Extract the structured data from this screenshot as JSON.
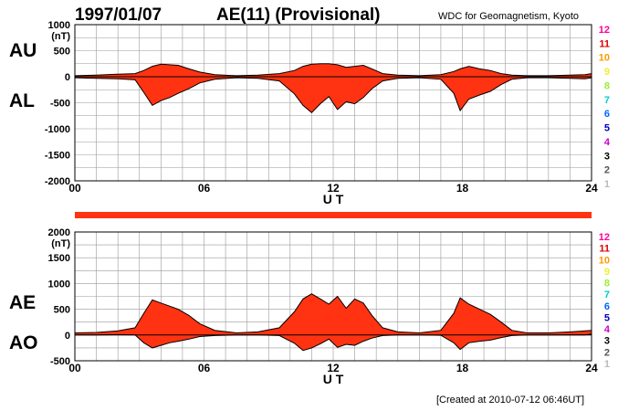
{
  "header": {
    "date": "1997/01/07",
    "title": "AE(11) (Provisional)",
    "source": "WDC for Geomagnetism, Kyoto"
  },
  "footer": {
    "created": "[Created at 2010-07-12 06:46UT]"
  },
  "station_count": {
    "labels": [
      "12",
      "11",
      "10",
      "9",
      "8",
      "7",
      "6",
      "5",
      "4",
      "3",
      "2",
      "1"
    ],
    "colors": [
      "#ff0099",
      "#dd0000",
      "#ff9900",
      "#eeee33",
      "#99ee33",
      "#00cccc",
      "#0066ff",
      "#0000bb",
      "#cc00cc",
      "#000000",
      "#555555",
      "#bbbbbb"
    ]
  },
  "colors": {
    "fill": "#ff3311",
    "bar": "#ff3311",
    "grid": "#999999",
    "edge": "#000000"
  },
  "chart_data": [
    {
      "type": "area",
      "panel_labels": [
        "AU",
        "AL"
      ],
      "y_unit": "(nT)",
      "xlabel": "U T",
      "ylim": [
        -2000,
        1000
      ],
      "yticks": [
        1000,
        500,
        0,
        -500,
        -1000,
        -1500,
        -2000
      ],
      "xlim": [
        0,
        24
      ],
      "xticks": [
        "00",
        "06",
        "12",
        "18",
        "24"
      ],
      "grid": true,
      "x": [
        0,
        1,
        2,
        2.8,
        3.2,
        3.6,
        4.0,
        4.4,
        4.8,
        5.3,
        5.8,
        6.5,
        7.5,
        8.5,
        9.5,
        10.2,
        10.6,
        11.0,
        11.4,
        11.8,
        12.2,
        12.6,
        13.0,
        13.4,
        13.8,
        14.3,
        15.0,
        16.0,
        17.0,
        17.6,
        17.9,
        18.3,
        18.8,
        19.3,
        19.8,
        20.3,
        21,
        22,
        23,
        23.7,
        24
      ],
      "series": [
        {
          "name": "AU",
          "values": [
            20,
            30,
            50,
            60,
            120,
            200,
            240,
            230,
            220,
            150,
            90,
            40,
            20,
            30,
            60,
            120,
            200,
            240,
            250,
            250,
            230,
            180,
            200,
            220,
            150,
            60,
            30,
            20,
            40,
            100,
            150,
            200,
            150,
            120,
            60,
            30,
            20,
            20,
            30,
            40,
            60
          ]
        },
        {
          "name": "AL",
          "values": [
            -20,
            -30,
            -40,
            -60,
            -300,
            -550,
            -460,
            -400,
            -320,
            -230,
            -120,
            -50,
            -20,
            -30,
            -80,
            -330,
            -550,
            -690,
            -520,
            -380,
            -630,
            -480,
            -520,
            -400,
            -230,
            -80,
            -30,
            -20,
            -50,
            -320,
            -650,
            -430,
            -350,
            -280,
            -150,
            -50,
            -20,
            -20,
            -30,
            -40,
            -20
          ]
        }
      ]
    },
    {
      "type": "area",
      "panel_labels": [
        "AE",
        "AO"
      ],
      "y_unit": "(nT)",
      "xlabel": "U T",
      "ylim": [
        -500,
        2000
      ],
      "yticks": [
        2000,
        1500,
        1000,
        500,
        0,
        -500
      ],
      "xlim": [
        0,
        24
      ],
      "xticks": [
        "00",
        "06",
        "12",
        "18",
        "24"
      ],
      "grid": true,
      "x": [
        0,
        1,
        2,
        2.8,
        3.2,
        3.6,
        4.0,
        4.4,
        4.8,
        5.3,
        5.8,
        6.5,
        7.5,
        8.5,
        9.5,
        10.2,
        10.6,
        11.0,
        11.4,
        11.8,
        12.2,
        12.6,
        13.0,
        13.4,
        13.8,
        14.3,
        15.0,
        16.0,
        17.0,
        17.6,
        17.9,
        18.3,
        18.8,
        19.3,
        19.8,
        20.3,
        21,
        22,
        23,
        23.7,
        24
      ],
      "series": [
        {
          "name": "AE",
          "values": [
            40,
            50,
            80,
            140,
            420,
            680,
            620,
            560,
            500,
            380,
            220,
            90,
            40,
            60,
            140,
            450,
            700,
            800,
            700,
            600,
            750,
            520,
            700,
            620,
            380,
            140,
            60,
            40,
            90,
            420,
            720,
            600,
            500,
            400,
            250,
            90,
            40,
            40,
            60,
            80,
            90
          ]
        },
        {
          "name": "AO",
          "values": [
            0,
            0,
            5,
            0,
            -150,
            -250,
            -200,
            -150,
            -120,
            -80,
            -30,
            -10,
            0,
            0,
            -10,
            -160,
            -300,
            -250,
            -170,
            -80,
            -240,
            -180,
            -200,
            -120,
            -60,
            -10,
            0,
            0,
            -5,
            -150,
            -280,
            -150,
            -120,
            -100,
            -50,
            -10,
            0,
            0,
            0,
            0,
            20
          ]
        }
      ]
    }
  ]
}
